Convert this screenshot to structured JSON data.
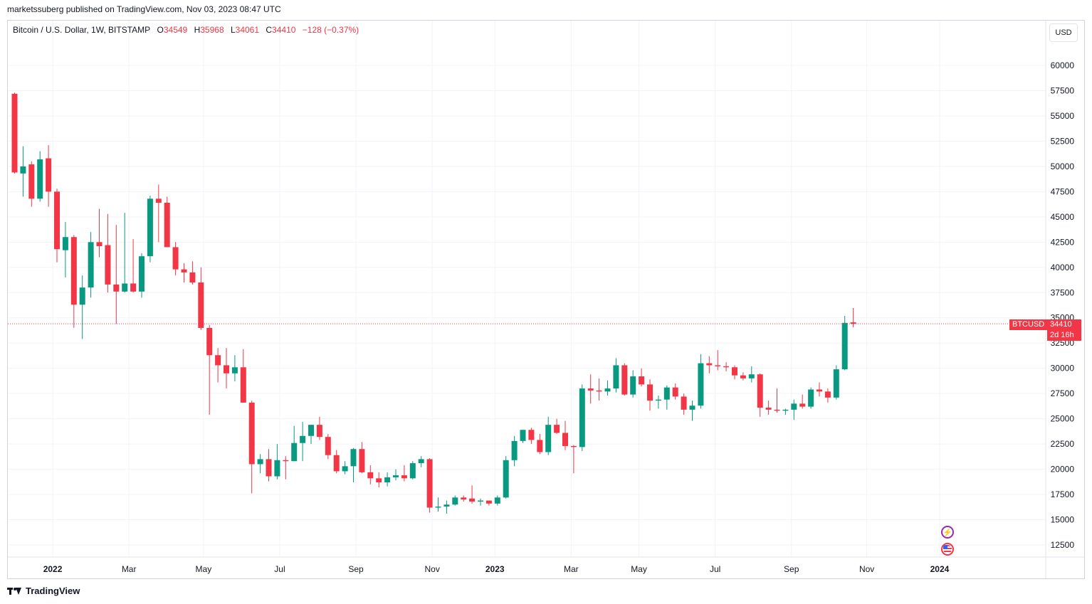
{
  "header": {
    "text": "marketssuberg published on TradingView.com, Nov 03, 2023 08:47 UTC"
  },
  "legend": {
    "symbol": "Bitcoin / U.S. Dollar, 1W, BITSTAMP",
    "open_label": "O",
    "open": "34549",
    "high_label": "H",
    "high": "35968",
    "low_label": "L",
    "low": "34061",
    "close_label": "C",
    "close": "34410",
    "change": "−128 (−0.37%)"
  },
  "currency_button": "USD",
  "price_tag": {
    "symbol": "BTCUSD",
    "price": "34410",
    "countdown": "2d 16h"
  },
  "footer": {
    "brand": "TradingView"
  },
  "colors": {
    "up": "#089981",
    "down": "#f23645",
    "grid": "#f0f3fa",
    "axis_text": "#131722"
  },
  "icons": {
    "event_1": "lightning-icon",
    "event_2": "us-flag-icon"
  },
  "chart_data": {
    "type": "candlestick",
    "interval": "1W",
    "ylim": [
      11000,
      62500
    ],
    "y_ticks": [
      12500,
      15000,
      17500,
      20000,
      22500,
      25000,
      27500,
      30000,
      32500,
      35000,
      37500,
      40000,
      42500,
      45000,
      47500,
      50000,
      52500,
      55000,
      57500,
      60000
    ],
    "x_ticks": [
      {
        "label": "2022",
        "bar": 4.5,
        "bold": true
      },
      {
        "label": "Mar",
        "bar": 13.5,
        "bold": false
      },
      {
        "label": "May",
        "bar": 22.3,
        "bold": false
      },
      {
        "label": "Jul",
        "bar": 31.3,
        "bold": false
      },
      {
        "label": "Sep",
        "bar": 40.3,
        "bold": false
      },
      {
        "label": "Nov",
        "bar": 49.3,
        "bold": false
      },
      {
        "label": "2023",
        "bar": 56.7,
        "bold": true
      },
      {
        "label": "Mar",
        "bar": 65.7,
        "bold": false
      },
      {
        "label": "May",
        "bar": 73.7,
        "bold": false
      },
      {
        "label": "Jul",
        "bar": 82.7,
        "bold": false
      },
      {
        "label": "Sep",
        "bar": 91.7,
        "bold": false
      },
      {
        "label": "Nov",
        "bar": 100.6,
        "bold": false
      },
      {
        "label": "2024",
        "bar": 109.2,
        "bold": true
      }
    ],
    "last_price": 34410,
    "candles": [
      [
        57200,
        57300,
        49300,
        49400
      ],
      [
        49300,
        52000,
        47000,
        50000
      ],
      [
        50200,
        50500,
        46000,
        46800
      ],
      [
        46800,
        51500,
        46500,
        50700
      ],
      [
        50800,
        52100,
        46000,
        47500
      ],
      [
        47500,
        47800,
        40500,
        41800
      ],
      [
        41700,
        44500,
        39000,
        43000
      ],
      [
        43000,
        43200,
        34000,
        36300
      ],
      [
        36300,
        39200,
        32900,
        38000
      ],
      [
        38000,
        43500,
        37000,
        42500
      ],
      [
        42500,
        45800,
        41000,
        42100
      ],
      [
        42200,
        45300,
        37500,
        38300
      ],
      [
        38300,
        44200,
        34400,
        37600
      ],
      [
        37600,
        45400,
        37500,
        38400
      ],
      [
        38400,
        42800,
        37500,
        37600
      ],
      [
        37600,
        41400,
        37000,
        41100
      ],
      [
        41100,
        47100,
        40500,
        46800
      ],
      [
        46800,
        48200,
        42500,
        46400
      ],
      [
        46400,
        47000,
        42000,
        42000
      ],
      [
        42000,
        42500,
        39200,
        39800
      ],
      [
        39800,
        40400,
        38500,
        39500
      ],
      [
        39500,
        40600,
        38300,
        38500
      ],
      [
        38500,
        40000,
        33800,
        34000
      ],
      [
        34000,
        34300,
        25400,
        31300
      ],
      [
        31300,
        32000,
        28600,
        30300
      ],
      [
        30300,
        32000,
        28000,
        29500
      ],
      [
        29500,
        31300,
        28700,
        30100
      ],
      [
        30100,
        31900,
        26600,
        26600
      ],
      [
        26600,
        26800,
        17600,
        20500
      ],
      [
        20500,
        21500,
        19600,
        21000
      ],
      [
        21000,
        22000,
        18800,
        19300
      ],
      [
        19300,
        22500,
        19000,
        20900
      ],
      [
        20900,
        21300,
        19000,
        20800
      ],
      [
        20800,
        24300,
        20800,
        22600
      ],
      [
        22600,
        24700,
        20800,
        23300
      ],
      [
        23300,
        24400,
        22500,
        24400
      ],
      [
        24400,
        25200,
        22900,
        23200
      ],
      [
        23200,
        23500,
        21000,
        21400
      ],
      [
        21400,
        21900,
        19600,
        19800
      ],
      [
        19800,
        20800,
        19500,
        20300
      ],
      [
        20300,
        22100,
        18700,
        22000
      ],
      [
        22000,
        22700,
        19600,
        19700
      ],
      [
        19700,
        20400,
        18500,
        19100
      ],
      [
        19100,
        19700,
        18200,
        18700
      ],
      [
        18700,
        19700,
        18300,
        19200
      ],
      [
        19200,
        20000,
        18900,
        19400
      ],
      [
        19400,
        20400,
        18800,
        19100
      ],
      [
        19100,
        20800,
        19000,
        20600
      ],
      [
        20600,
        21300,
        20200,
        21000
      ],
      [
        21000,
        21100,
        15700,
        16200
      ],
      [
        16200,
        17200,
        15800,
        16300
      ],
      [
        16300,
        16900,
        15600,
        16500
      ],
      [
        16500,
        17400,
        16400,
        17200
      ],
      [
        17200,
        17400,
        16800,
        17000
      ],
      [
        17100,
        18400,
        16600,
        16800
      ],
      [
        16800,
        17100,
        16400,
        16900
      ],
      [
        16900,
        16900,
        16400,
        16600
      ],
      [
        16600,
        17400,
        16400,
        17200
      ],
      [
        17200,
        21300,
        17100,
        20900
      ],
      [
        20900,
        23300,
        20300,
        22800
      ],
      [
        22800,
        23900,
        22600,
        23900
      ],
      [
        23900,
        24100,
        22500,
        22900
      ],
      [
        22900,
        23500,
        21500,
        21700
      ],
      [
        21700,
        25200,
        21400,
        24400
      ],
      [
        24400,
        25000,
        23500,
        23600
      ],
      [
        23600,
        24800,
        21900,
        22300
      ],
      [
        22300,
        22400,
        19600,
        22200
      ],
      [
        22200,
        28400,
        21800,
        28000
      ],
      [
        28000,
        29400,
        26500,
        27800
      ],
      [
        27800,
        29000,
        26800,
        27700
      ],
      [
        27700,
        28800,
        27300,
        28000
      ],
      [
        28000,
        31000,
        27600,
        30300
      ],
      [
        30300,
        30500,
        27300,
        27400
      ],
      [
        27400,
        29800,
        27100,
        29200
      ],
      [
        29200,
        30000,
        28200,
        28400
      ],
      [
        28400,
        28900,
        25800,
        26800
      ],
      [
        26800,
        27300,
        26000,
        26900
      ],
      [
        26900,
        28300,
        25900,
        28100
      ],
      [
        28100,
        28500,
        26900,
        27200
      ],
      [
        27200,
        27500,
        25400,
        25900
      ],
      [
        25900,
        26800,
        24800,
        26300
      ],
      [
        26300,
        31400,
        26000,
        30500
      ],
      [
        30500,
        31200,
        29500,
        30300
      ],
      [
        30300,
        31800,
        29800,
        30200
      ],
      [
        30200,
        30600,
        29700,
        30100
      ],
      [
        30100,
        30300,
        28900,
        29300
      ],
      [
        29300,
        29600,
        28800,
        29000
      ],
      [
        29000,
        30200,
        28600,
        29400
      ],
      [
        29400,
        29500,
        25200,
        26100
      ],
      [
        26100,
        26800,
        25400,
        25900
      ],
      [
        25900,
        28000,
        25600,
        25800
      ],
      [
        25800,
        26000,
        25400,
        25900
      ],
      [
        25900,
        26900,
        24900,
        26500
      ],
      [
        26500,
        27400,
        26000,
        26200
      ],
      [
        26200,
        28100,
        26000,
        27900
      ],
      [
        27900,
        28600,
        27200,
        27700
      ],
      [
        27700,
        28000,
        26600,
        27100
      ],
      [
        27100,
        30300,
        26900,
        29900
      ],
      [
        29900,
        35200,
        29800,
        34500
      ],
      [
        34549,
        35968,
        34061,
        34410
      ]
    ]
  }
}
